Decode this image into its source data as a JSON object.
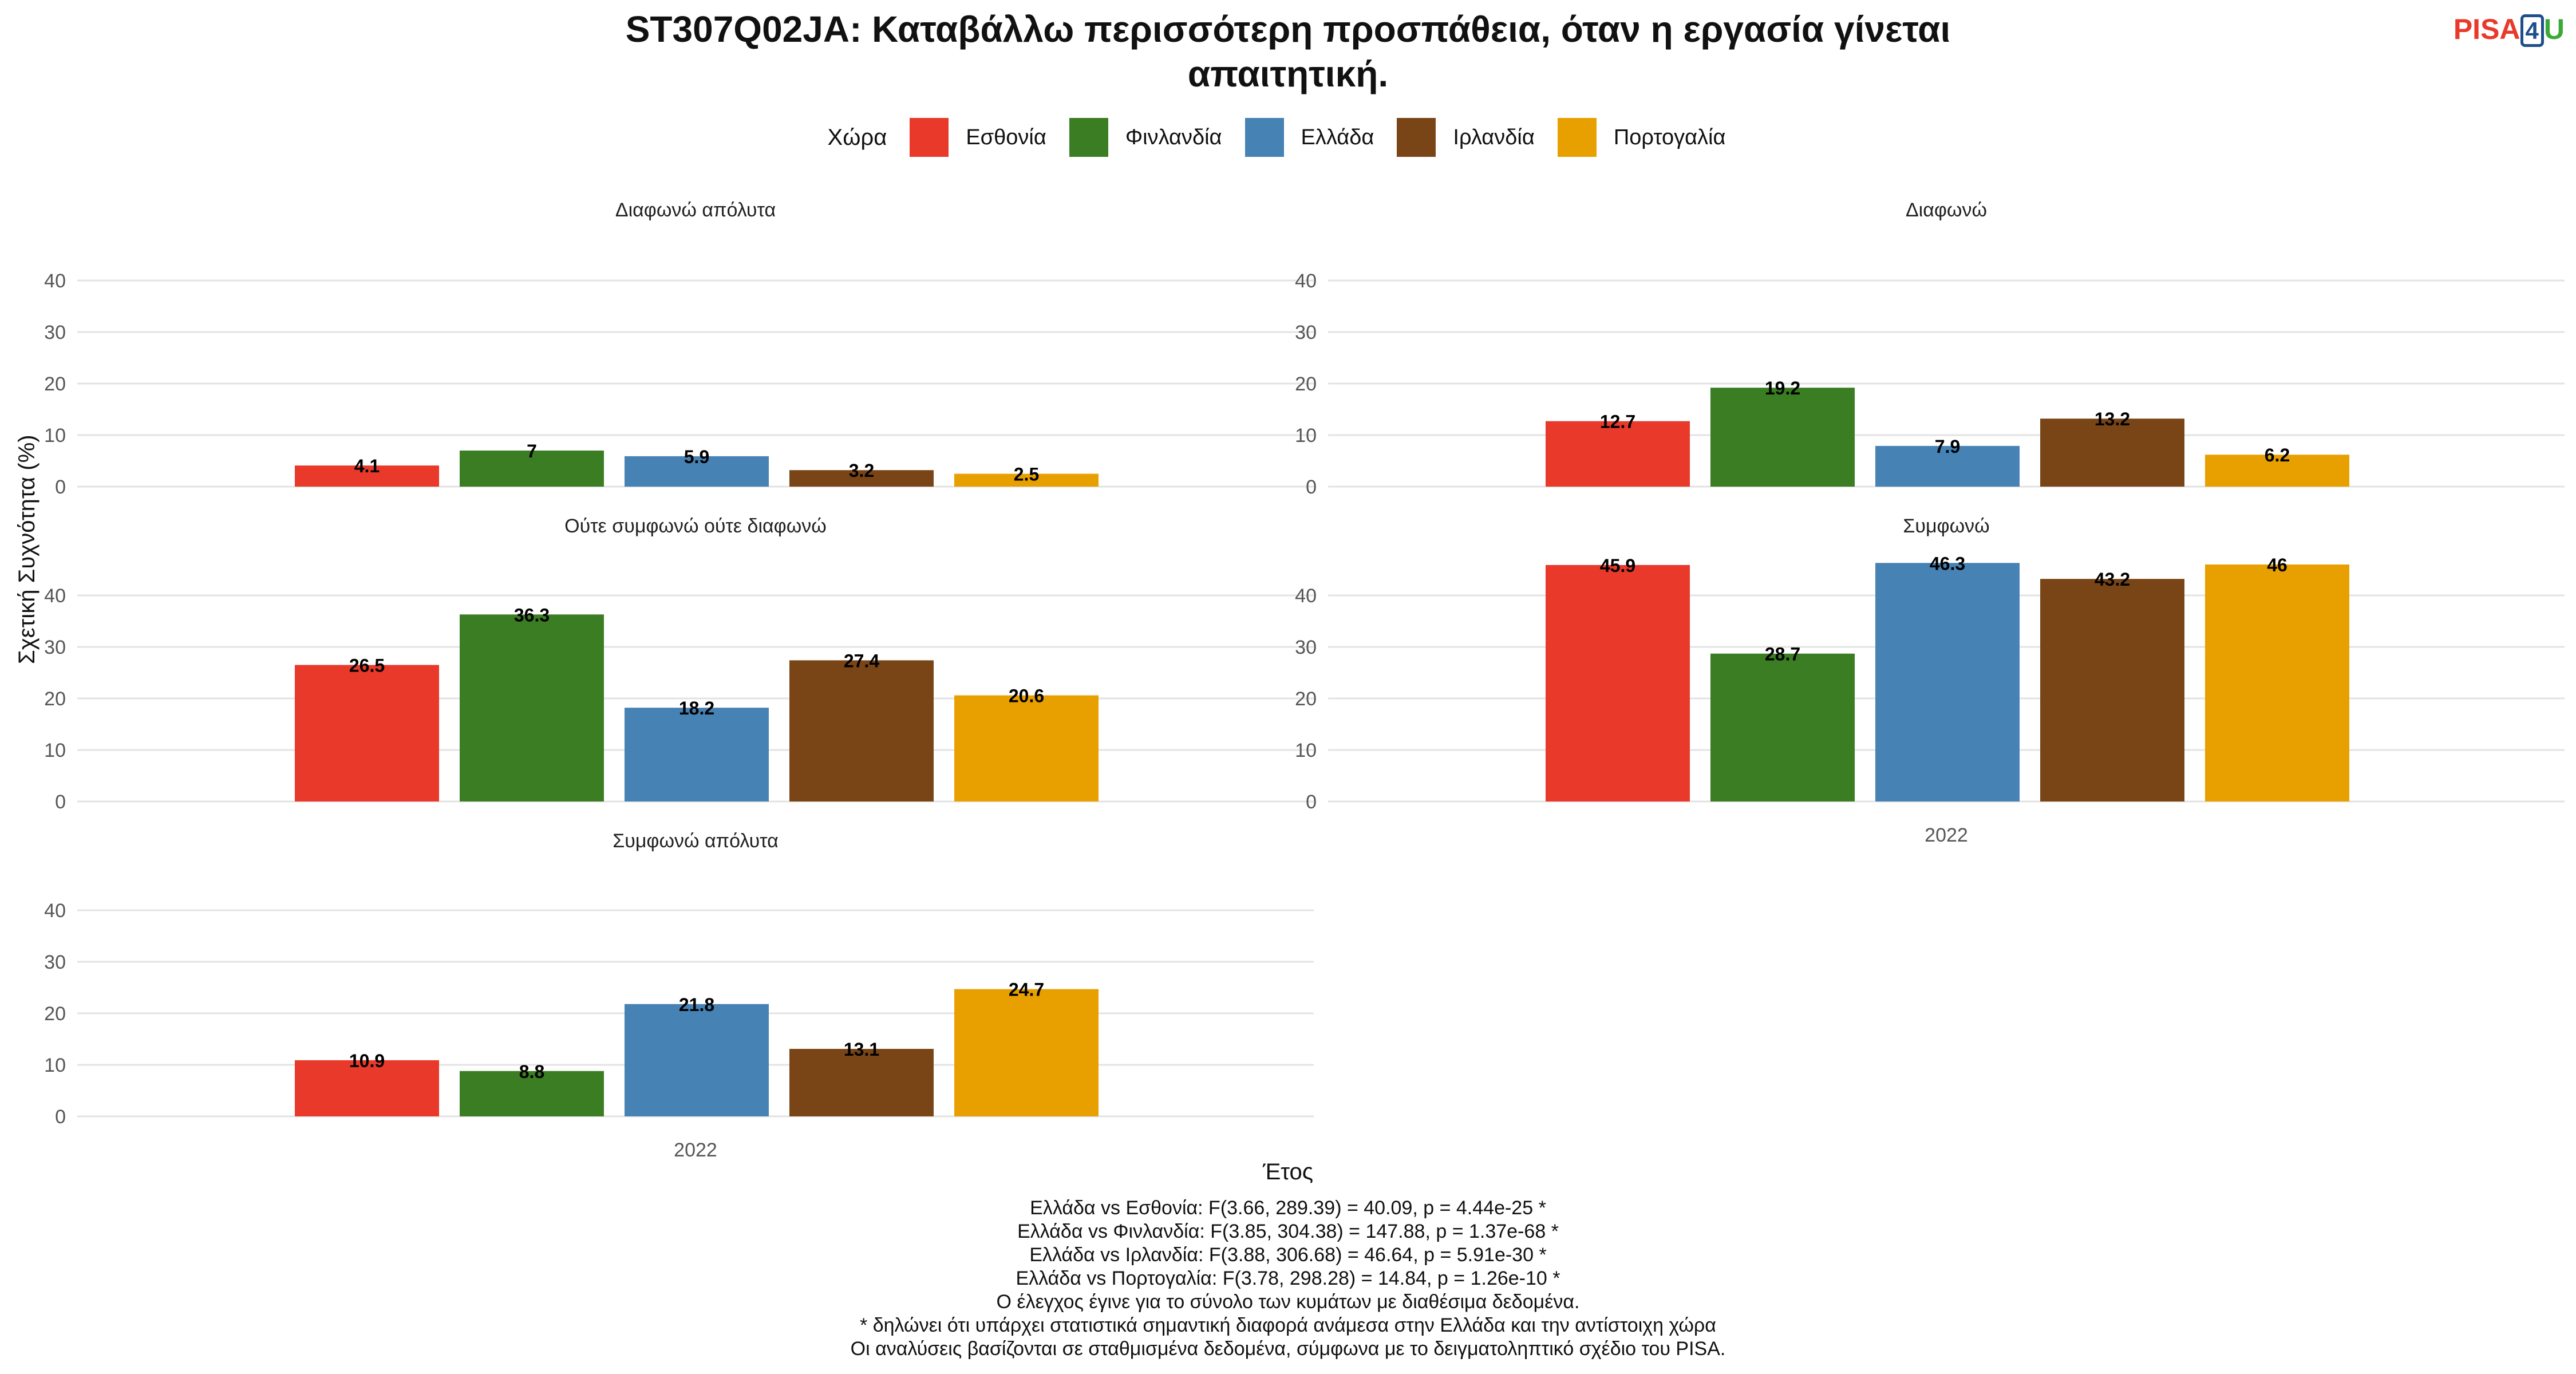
{
  "title_line1": "ST307Q02JA: Καταβάλλω περισσότερη προσπάθεια, όταν η εργασία γίνεται",
  "title_line2": "απαιτητική.",
  "logo": {
    "pisa": "PISA",
    "four": "4",
    "u": "U"
  },
  "legend_title": "Χώρα",
  "countries": [
    "Εσθονία",
    "Φινλανδία",
    "Ελλάδα",
    "Ιρλανδία",
    "Πορτογαλία"
  ],
  "colors": {
    "Εσθονία": "#e8392b",
    "Φινλανδία": "#3a7d22",
    "Ελλάδα": "#4682b4",
    "Ιρλανδία": "#7a4516",
    "Πορτογαλία": "#e8a000"
  },
  "x_axis_title": "Έτος",
  "y_axis_title": "Σχετική Συχνότητα (%)",
  "notes": [
    "Ελλάδα vs Εσθονία: F(3.66, 289.39) = 40.09, p = 4.44e-25 *",
    "Ελλάδα vs Φινλανδία: F(3.85, 304.38) = 147.88, p = 1.37e-68 *",
    "Ελλάδα vs Ιρλανδία: F(3.88, 306.68) = 46.64, p = 5.91e-30 *",
    "Ελλάδα vs Πορτογαλία: F(3.78, 298.28) = 14.84, p = 1.26e-10 *",
    "Ο έλεγχος έγινε για το σύνολο των κυμάτων με διαθέσιμα δεδομένα.",
    "* δηλώνει ότι υπάρχει στατιστικά σημαντική διαφορά ανάμεσα στην Ελλάδα και την αντίστοιχη χώρα",
    "Οι αναλύσεις βασίζονται σε σταθμισμένα δεδομένα, σύμφωνα με το δειγματοληπτικό σχέδιο του PISA."
  ],
  "chart_data": {
    "type": "bar",
    "x_category": "2022",
    "ylim": [
      0,
      40
    ],
    "y_ticks": [
      0,
      10,
      20,
      30,
      40
    ],
    "grid": true,
    "legend_position": "top",
    "facets": [
      {
        "title": "Διαφωνώ απόλυτα",
        "values": [
          4.1,
          7,
          5.9,
          3.2,
          2.5
        ]
      },
      {
        "title": "Διαφωνώ",
        "values": [
          12.7,
          19.2,
          7.9,
          13.2,
          6.2
        ]
      },
      {
        "title": "Ούτε συμφωνώ ούτε διαφωνώ",
        "values": [
          26.5,
          36.3,
          18.2,
          27.4,
          20.6
        ]
      },
      {
        "title": "Συμφωνώ",
        "values": [
          45.9,
          28.7,
          46.3,
          43.2,
          46
        ]
      },
      {
        "title": "Συμφωνώ απόλυτα",
        "values": [
          10.9,
          8.8,
          21.8,
          13.1,
          24.7
        ]
      }
    ]
  }
}
